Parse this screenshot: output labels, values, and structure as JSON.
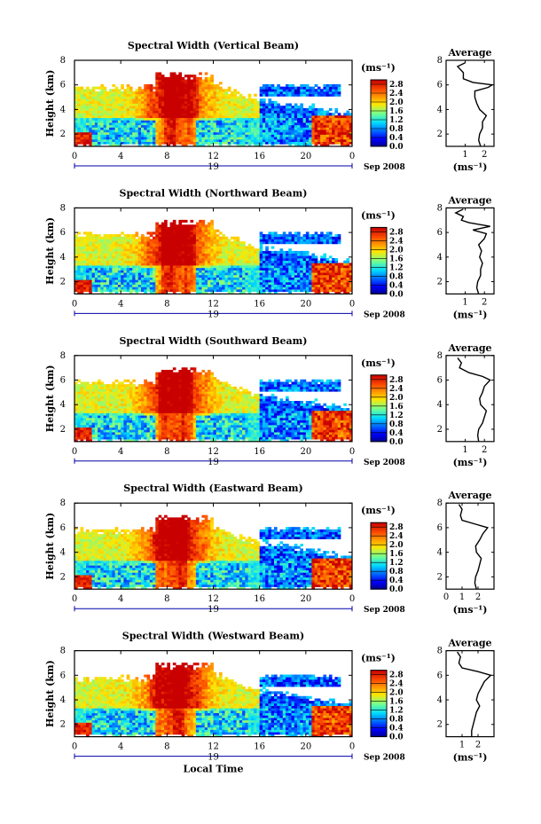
{
  "chart_data": [
    {
      "type": "heatmap",
      "title": "Spectral Width (Vertical Beam)",
      "ylabel": "Height (km)",
      "yticks": [
        "2",
        "4",
        "6",
        "8"
      ],
      "ylim": [
        1,
        8
      ],
      "xticks": [
        "0",
        "4",
        "8",
        "12",
        "16",
        "20",
        "0"
      ],
      "xlim": [
        0,
        24
      ],
      "date_mid_label": "19",
      "date_label": "Sep 2008",
      "colorbar": {
        "unit_label": "(ms⁻¹)",
        "ticks": [
          "0.0",
          "0.4",
          "0.8",
          "1.2",
          "1.6",
          "2.0",
          "2.4",
          "2.8"
        ],
        "range": [
          0,
          3.0
        ]
      },
      "average_profile": {
        "title": "Average",
        "xlabel": "(ms⁻¹)",
        "xticks": [
          "1",
          "2"
        ],
        "xlim": [
          0,
          2.5
        ],
        "yticks": [
          "2",
          "4",
          "6",
          "8"
        ],
        "ylim": [
          1,
          8
        ],
        "height": [
          1.0,
          1.5,
          2.0,
          2.5,
          3.0,
          3.5,
          4.0,
          4.5,
          5.0,
          5.5,
          5.8,
          6.0,
          6.2,
          6.5,
          7.0,
          7.5,
          7.8
        ],
        "width": [
          1.8,
          1.7,
          1.75,
          1.9,
          1.9,
          2.1,
          1.75,
          1.6,
          1.5,
          1.5,
          2.2,
          2.4,
          1.4,
          0.9,
          0.9,
          0.6,
          1.0
        ]
      }
    },
    {
      "type": "heatmap",
      "title": "Spectral Width (Northward Beam)",
      "ylabel": "Height (km)",
      "yticks": [
        "2",
        "4",
        "6",
        "8"
      ],
      "ylim": [
        1,
        8
      ],
      "xticks": [
        "0",
        "4",
        "8",
        "12",
        "16",
        "20",
        "0"
      ],
      "xlim": [
        0,
        24
      ],
      "date_mid_label": "19",
      "date_label": "Sep 2008",
      "colorbar": {
        "unit_label": "(ms⁻¹)",
        "ticks": [
          "0.0",
          "0.4",
          "0.8",
          "1.2",
          "1.6",
          "2.0",
          "2.4",
          "2.8"
        ],
        "range": [
          0,
          3.0
        ]
      },
      "average_profile": {
        "title": "Average",
        "xlabel": "(ms⁻¹)",
        "xticks": [
          "1",
          "2"
        ],
        "xlim": [
          0,
          2.5
        ],
        "yticks": [
          "2",
          "4",
          "6",
          "8"
        ],
        "ylim": [
          1,
          8
        ],
        "height": [
          1.0,
          1.5,
          2.0,
          2.5,
          3.0,
          3.5,
          4.0,
          4.5,
          5.0,
          5.5,
          5.9,
          6.2,
          6.5,
          6.8,
          7.0,
          7.3,
          7.6,
          7.9
        ],
        "width": [
          1.7,
          1.6,
          1.65,
          1.8,
          1.8,
          1.9,
          1.75,
          1.85,
          1.7,
          2.0,
          2.1,
          1.4,
          2.3,
          1.2,
          0.8,
          0.9,
          0.5,
          0.9
        ]
      }
    },
    {
      "type": "heatmap",
      "title": "Spectral Width (Southward Beam)",
      "ylabel": "Height (km)",
      "yticks": [
        "2",
        "4",
        "6",
        "8"
      ],
      "ylim": [
        1,
        8
      ],
      "xticks": [
        "0",
        "4",
        "8",
        "12",
        "16",
        "20",
        "0"
      ],
      "xlim": [
        0,
        24
      ],
      "date_mid_label": "19",
      "date_label": "Sep 2008",
      "colorbar": {
        "unit_label": "(ms⁻¹)",
        "ticks": [
          "0.0",
          "0.4",
          "0.8",
          "1.2",
          "1.6",
          "2.0",
          "2.4",
          "2.8"
        ],
        "range": [
          0,
          3.0
        ]
      },
      "average_profile": {
        "title": "Average",
        "xlabel": "(ms⁻¹)",
        "xticks": [
          "1",
          "2"
        ],
        "xlim": [
          0,
          2.5
        ],
        "yticks": [
          "2",
          "4",
          "6",
          "8"
        ],
        "ylim": [
          1,
          8
        ],
        "height": [
          1.0,
          1.5,
          2.0,
          2.5,
          3.0,
          3.5,
          4.0,
          4.5,
          5.0,
          5.5,
          6.0,
          6.3,
          6.6,
          7.0,
          7.4,
          7.8
        ],
        "width": [
          1.7,
          1.65,
          1.7,
          1.9,
          2.0,
          2.1,
          1.8,
          1.75,
          1.9,
          2.0,
          2.3,
          1.9,
          1.2,
          0.7,
          0.8,
          0.6
        ]
      }
    },
    {
      "type": "heatmap",
      "title": "Spectral Width (Eastward Beam)",
      "ylabel": "Height (km)",
      "yticks": [
        "2",
        "4",
        "6",
        "8"
      ],
      "ylim": [
        1,
        8
      ],
      "xticks": [
        "0",
        "4",
        "8",
        "12",
        "16",
        "20",
        "0"
      ],
      "xlim": [
        0,
        24
      ],
      "date_mid_label": "19",
      "date_label": "Sep 2008",
      "colorbar": {
        "unit_label": "(ms⁻¹)",
        "ticks": [
          "0.0",
          "0.4",
          "0.8",
          "1.2",
          "1.6",
          "2.0",
          "2.4",
          "2.8"
        ],
        "range": [
          0,
          3.0
        ]
      },
      "average_profile": {
        "title": "Average",
        "xlabel": "(ms⁻¹)",
        "xticks": [
          "0",
          "1",
          "2"
        ],
        "xlim": [
          0,
          3.0
        ],
        "yticks": [
          "2",
          "4",
          "6",
          "8"
        ],
        "ylim": [
          1,
          8
        ],
        "height": [
          1.0,
          1.5,
          2.0,
          2.5,
          3.0,
          3.5,
          4.0,
          4.5,
          5.0,
          5.5,
          6.0,
          6.3,
          6.6,
          7.0,
          7.5,
          7.9
        ],
        "width": [
          1.9,
          1.8,
          1.85,
          2.0,
          2.1,
          2.2,
          1.9,
          1.85,
          2.1,
          2.3,
          2.6,
          1.8,
          1.0,
          0.9,
          1.0,
          0.8
        ]
      }
    },
    {
      "type": "heatmap",
      "title": "Spectral Width (Westward Beam)",
      "ylabel": "Height (km)",
      "yticks": [
        "2",
        "4",
        "6",
        "8"
      ],
      "ylim": [
        1,
        8
      ],
      "xticks": [
        "0",
        "4",
        "8",
        "12",
        "16",
        "20",
        "0"
      ],
      "xlim": [
        0,
        24
      ],
      "date_mid_label": "19",
      "date_label": "Sep 2008",
      "xlabel": "Local Time",
      "colorbar": {
        "unit_label": "(ms⁻¹)",
        "ticks": [
          "0.0",
          "0.4",
          "0.8",
          "1.2",
          "1.6",
          "2.0",
          "2.4",
          "2.8"
        ],
        "range": [
          0,
          3.0
        ]
      },
      "average_profile": {
        "title": "Average",
        "xlabel": "(ms⁻¹)",
        "xticks": [
          "1",
          "2"
        ],
        "xlim": [
          0,
          3.0
        ],
        "yticks": [
          "2",
          "4",
          "6",
          "8"
        ],
        "ylim": [
          1,
          8
        ],
        "height": [
          1.0,
          1.5,
          2.0,
          2.5,
          3.0,
          3.5,
          4.0,
          4.5,
          5.0,
          5.5,
          6.0,
          6.3,
          6.6,
          7.0,
          7.5,
          7.9
        ],
        "width": [
          1.6,
          1.6,
          1.7,
          1.8,
          1.9,
          2.1,
          1.9,
          2.0,
          2.2,
          2.4,
          2.8,
          2.0,
          1.0,
          0.8,
          0.9,
          0.7
        ]
      }
    }
  ]
}
